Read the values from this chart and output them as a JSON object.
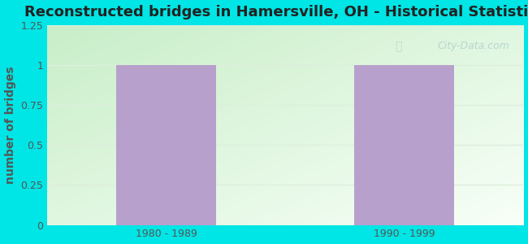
{
  "title": "Reconstructed bridges in Hamersville, OH - Historical Statistics",
  "categories": [
    "1980 - 1989",
    "1990 - 1999"
  ],
  "values": [
    1,
    1
  ],
  "bar_color": "#b8a0cc",
  "background_color": "#00e5e5",
  "ylabel": "number of bridges",
  "ylabel_color": "#555555",
  "title_color": "#222222",
  "tick_color": "#555555",
  "ylim": [
    0,
    1.25
  ],
  "yticks": [
    0,
    0.25,
    0.5,
    0.75,
    1,
    1.25
  ],
  "watermark": "City-Data.com",
  "title_fontsize": 13,
  "ylabel_fontsize": 10,
  "grid_color": "#ddeedd",
  "plot_bg_left": "#c8eec8",
  "plot_bg_right": "#f5fff5"
}
